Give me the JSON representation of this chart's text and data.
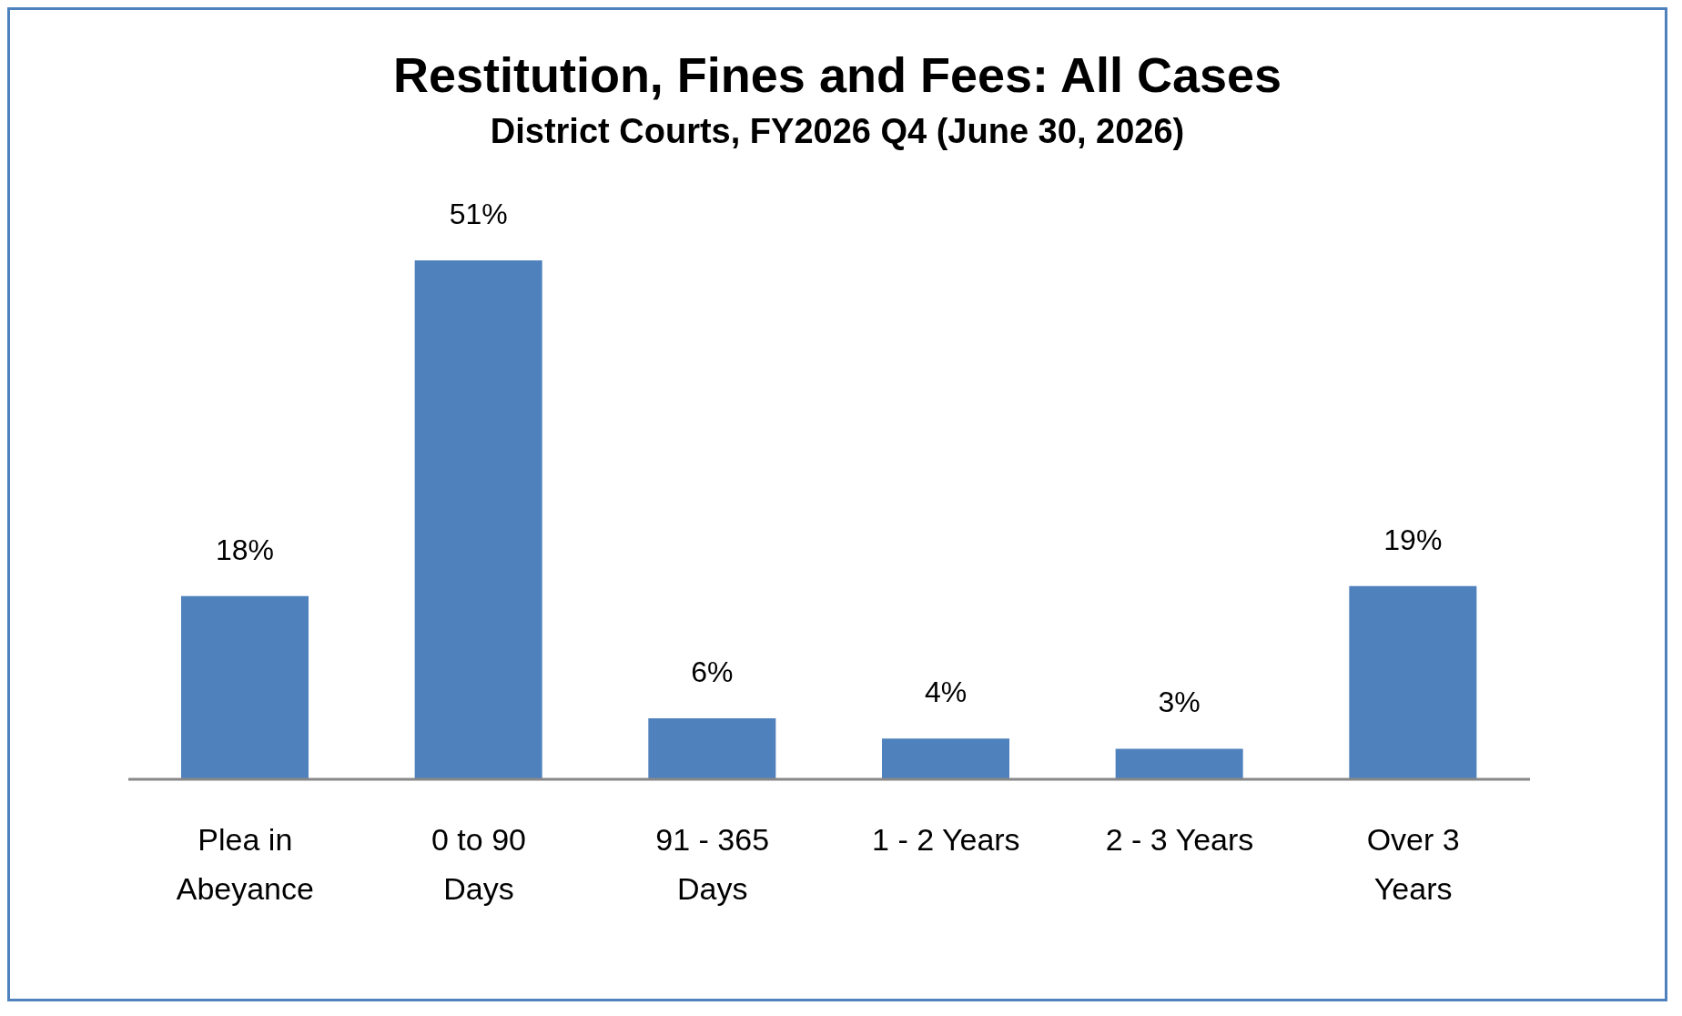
{
  "chart_data": {
    "type": "bar",
    "title": "Restitution, Fines and Fees: All Cases",
    "subtitle": "District Courts, FY2026 Q4 (June 30, 2026)",
    "categories": [
      "Plea in Abeyance",
      "0 to 90 Days",
      "91 - 365 Days",
      "1 - 2 Years",
      "2 - 3 Years",
      "Over 3 Years"
    ],
    "values": [
      18,
      51,
      6,
      4,
      3,
      19
    ],
    "value_labels": [
      "18%",
      "51%",
      "6%",
      "4%",
      "3%",
      "19%"
    ],
    "color": "#4f81bd"
  }
}
